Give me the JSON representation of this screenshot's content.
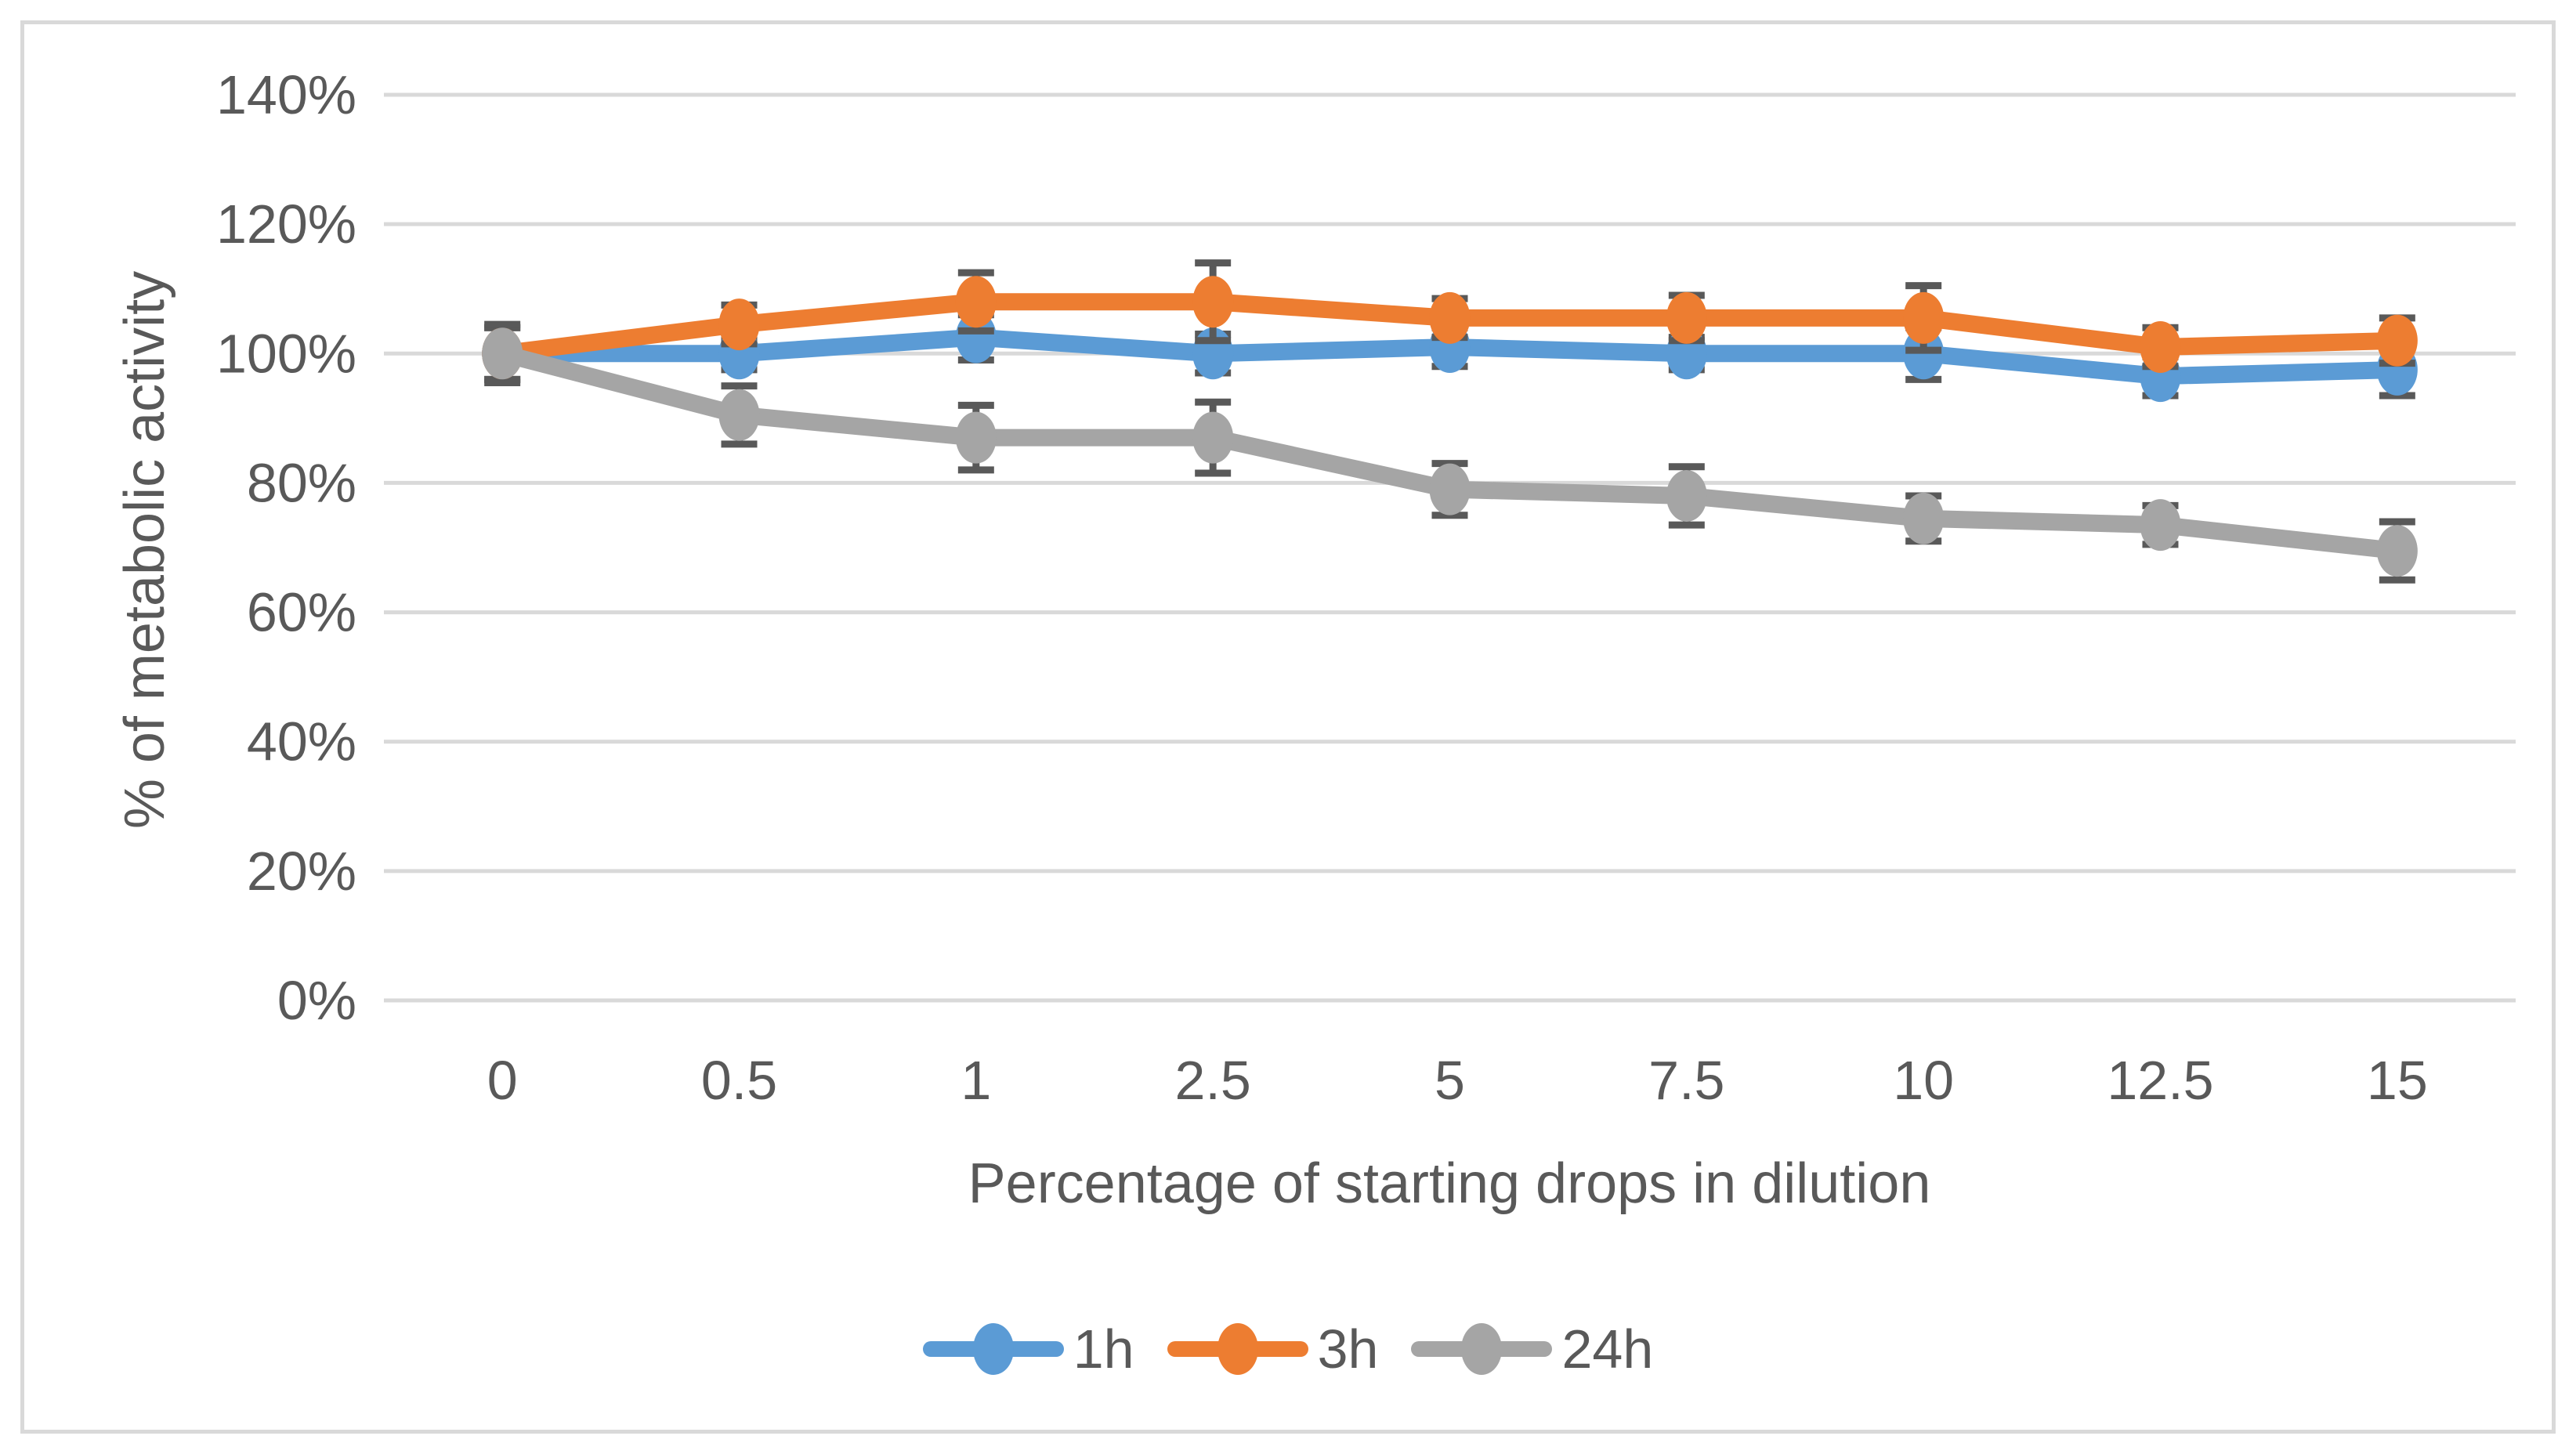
{
  "chart_data": {
    "type": "line",
    "title": "",
    "xlabel": "Percentage of starting drops in dilution",
    "ylabel": "% of metabolic activity",
    "categories": [
      "0",
      "0.5",
      "1",
      "2.5",
      "5",
      "7.5",
      "10",
      "12.5",
      "15"
    ],
    "y_ticks": [
      "0%",
      "20%",
      "40%",
      "60%",
      "80%",
      "100%",
      "120%",
      "140%"
    ],
    "ylim": [
      0,
      140
    ],
    "y_unit": "%",
    "grid": "horizontal",
    "legend_position": "bottom",
    "marker": "circle",
    "error_bars": true,
    "series": [
      {
        "name": "1h",
        "color": "#5B9BD5",
        "values": [
          100,
          100,
          102.5,
          100,
          101,
          100,
          100,
          96.5,
          97.5
        ],
        "error": [
          4,
          2.5,
          3.5,
          3,
          3,
          2.5,
          4,
          3,
          4
        ]
      },
      {
        "name": "3h",
        "color": "#ED7D31",
        "values": [
          100,
          104.5,
          108,
          108,
          105.5,
          105.5,
          105.5,
          101,
          102
        ],
        "error": [
          4,
          3,
          4.5,
          6,
          3,
          3.5,
          5,
          3,
          3.5
        ]
      },
      {
        "name": "24h",
        "color": "#A5A5A5",
        "values": [
          100,
          90.5,
          87,
          87,
          79,
          78,
          74.5,
          73.5,
          69.5
        ],
        "error": [
          4.5,
          4.5,
          5,
          5.5,
          4,
          4.5,
          3.5,
          3,
          4.5
        ]
      }
    ],
    "error_bar_color": "#595959",
    "gridline_color": "#D9D9D9",
    "text_color": "#595959"
  }
}
